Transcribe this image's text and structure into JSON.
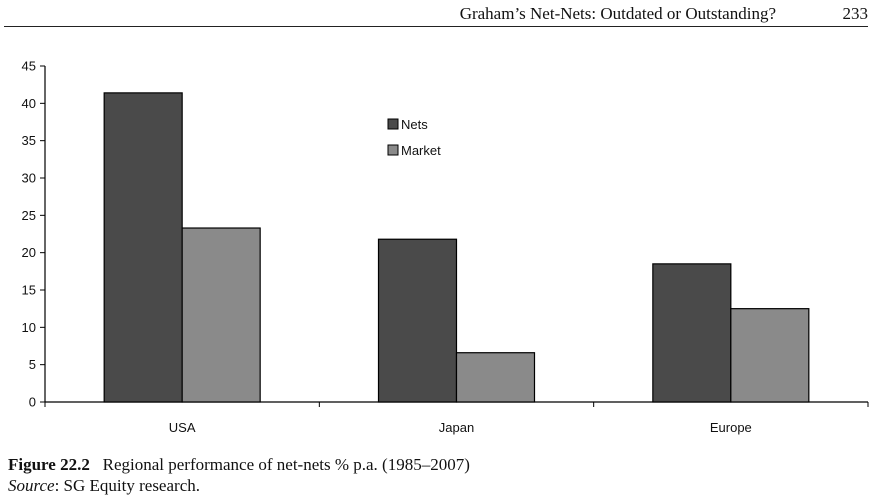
{
  "header": {
    "running_title": "Graham’s Net-Nets: Outdated or Outstanding?",
    "page_number": "233"
  },
  "caption": {
    "figure_label": "Figure 22.2",
    "figure_text": "Regional performance of net-nets % p.a. (1985–2007)",
    "source_label": "Source",
    "source_text": ": SG Equity research."
  },
  "chart_data": {
    "type": "bar",
    "title": "",
    "xlabel": "",
    "ylabel": "",
    "categories": [
      "USA",
      "Japan",
      "Europe"
    ],
    "series": [
      {
        "name": "Nets",
        "values": [
          41.4,
          21.8,
          18.5
        ],
        "color": "#4a4a4a"
      },
      {
        "name": "Market",
        "values": [
          23.3,
          6.6,
          12.5
        ],
        "color": "#8a8a8a"
      }
    ],
    "ylim": [
      0,
      45
    ],
    "yticks": [
      "0",
      "5",
      "10",
      "15",
      "20",
      "25",
      "30",
      "35",
      "40",
      "45"
    ],
    "grid": false,
    "legend": "upper-center"
  }
}
